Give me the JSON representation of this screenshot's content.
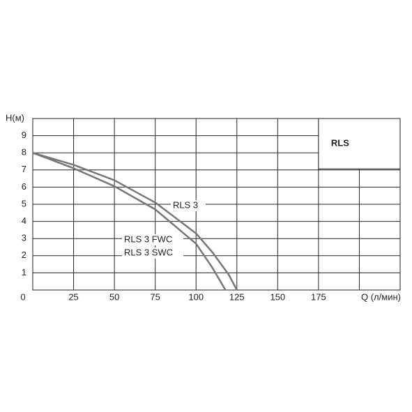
{
  "chart_data": {
    "type": "line",
    "y_label": "H(м)",
    "x_label": "Q (л/мин)",
    "box_label": "RLS",
    "xlim": [
      0,
      225
    ],
    "ylim": [
      0,
      10
    ],
    "xticks": [
      0,
      25,
      50,
      75,
      100,
      125,
      150,
      175
    ],
    "yticks": [
      1,
      2,
      3,
      4,
      5,
      6,
      7,
      8,
      9
    ],
    "xgrid": [
      25,
      50,
      75,
      100,
      125,
      150,
      175,
      200
    ],
    "grid": true,
    "series": [
      {
        "labels": [
          "RLS 3"
        ],
        "color": "#777777",
        "x": [
          0,
          25,
          50,
          75,
          100,
          110,
          120,
          125
        ],
        "values": [
          8,
          7.3,
          6.4,
          5.1,
          3.3,
          2.2,
          0.9,
          0
        ]
      },
      {
        "labels": [
          "RLS 3 FWC",
          "RLS 3 SWC"
        ],
        "color": "#777777",
        "x": [
          0,
          25,
          50,
          75,
          100,
          110,
          118
        ],
        "values": [
          8,
          7.1,
          6.05,
          4.7,
          2.7,
          1.3,
          0
        ]
      }
    ]
  }
}
